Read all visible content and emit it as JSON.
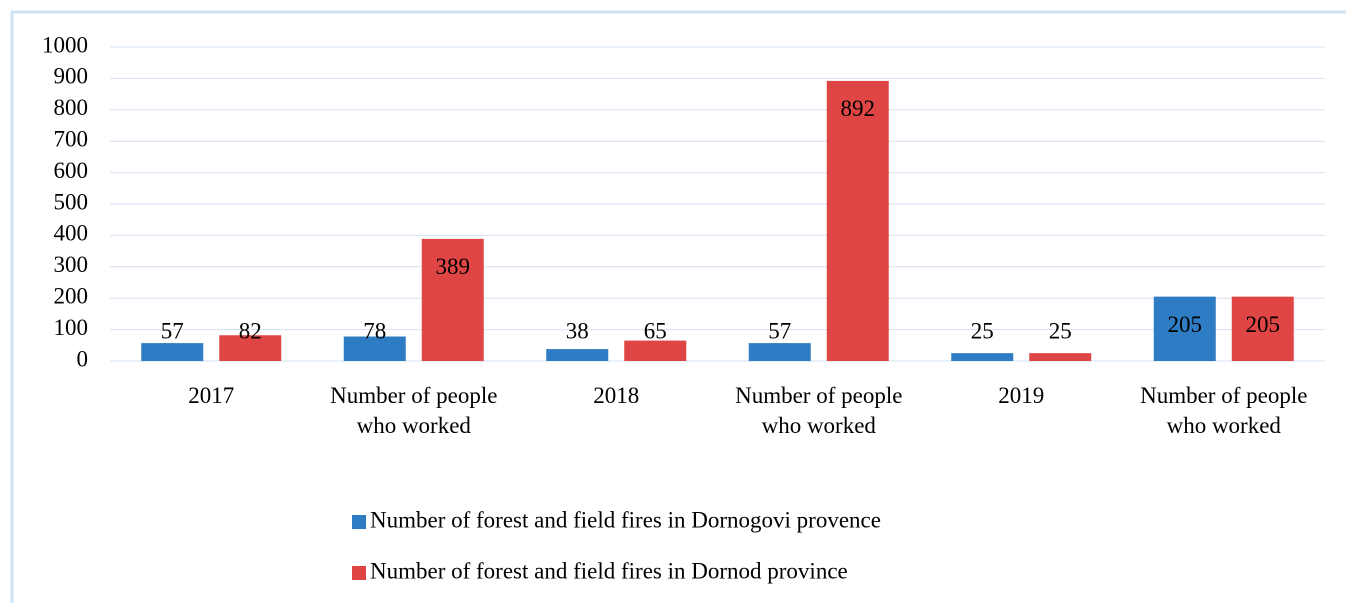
{
  "chart_data": {
    "type": "bar",
    "categories": [
      "2017",
      "Number of people who worked",
      "2018",
      "Number of people who worked",
      "2019",
      "Number of people who worked"
    ],
    "series": [
      {
        "name": "Number of forest and field fires in Dornogovi provence",
        "color": "#2e7dc4",
        "values": [
          57,
          78,
          38,
          57,
          25,
          205
        ]
      },
      {
        "name": "Number of forest and field fires in Dornod province",
        "color": "#e04545",
        "values": [
          82,
          389,
          65,
          892,
          25,
          205
        ]
      }
    ],
    "ylim": [
      0,
      1000
    ],
    "yticks": [
      0,
      100,
      200,
      300,
      400,
      500,
      600,
      700,
      800,
      900,
      1000
    ],
    "grid": true,
    "legend": "bottom"
  }
}
